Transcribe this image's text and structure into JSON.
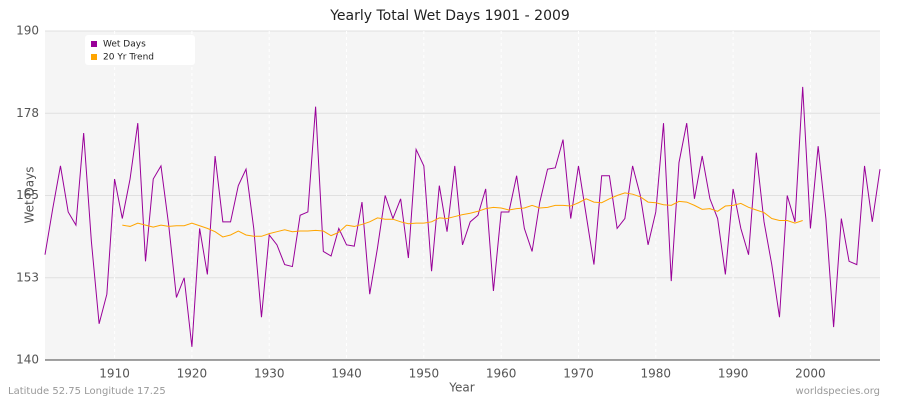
{
  "chart_data": {
    "type": "line",
    "title": "Yearly Total Wet Days 1901 - 2009",
    "x_label": "Year",
    "y_label": "Wet Days",
    "footer_left": "Latitude 52.75 Longitude 17.25",
    "footer_right": "worldspecies.org",
    "x": [
      1901,
      1902,
      1903,
      1904,
      1905,
      1906,
      1907,
      1908,
      1909,
      1910,
      1911,
      1912,
      1913,
      1914,
      1915,
      1916,
      1917,
      1918,
      1919,
      1920,
      1921,
      1922,
      1923,
      1924,
      1925,
      1926,
      1927,
      1928,
      1929,
      1930,
      1931,
      1932,
      1933,
      1934,
      1935,
      1936,
      1937,
      1938,
      1939,
      1940,
      1941,
      1942,
      1943,
      1944,
      1945,
      1946,
      1947,
      1948,
      1949,
      1950,
      1951,
      1952,
      1953,
      1954,
      1955,
      1956,
      1957,
      1958,
      1959,
      1960,
      1961,
      1962,
      1963,
      1964,
      1965,
      1966,
      1967,
      1968,
      1969,
      1970,
      1971,
      1972,
      1973,
      1974,
      1975,
      1976,
      1977,
      1978,
      1979,
      1980,
      1981,
      1982,
      1983,
      1984,
      1985,
      1986,
      1987,
      1988,
      1989,
      1990,
      1991,
      1992,
      1993,
      1994,
      1995,
      1996,
      1997,
      1998,
      1999,
      2000,
      2001,
      2002,
      2003,
      2004,
      2005,
      2006,
      2007,
      2008,
      2009
    ],
    "series": [
      {
        "name": "Wet Days",
        "color": "#990099",
        "values": [
          156,
          163,
          169.5,
          162.5,
          160.5,
          174.5,
          158,
          145.5,
          150,
          167.5,
          161.5,
          167.5,
          176,
          155,
          167.5,
          169.5,
          160.5,
          149.5,
          152.5,
          142,
          160,
          153,
          171,
          161,
          161,
          166.5,
          169,
          160,
          146.5,
          159,
          157.5,
          154.5,
          154.2,
          162,
          162.5,
          178.5,
          156.5,
          155.8,
          160,
          157.5,
          157.3,
          164,
          150,
          157,
          165,
          161.5,
          164.5,
          155.5,
          172,
          169.5,
          153.5,
          166.5,
          159.5,
          169.5,
          157.5,
          161,
          162,
          166,
          150.5,
          162.5,
          162.5,
          168,
          160,
          156.5,
          164,
          169,
          169.2,
          173.5,
          161.5,
          169.5,
          162,
          154.5,
          168,
          168,
          160,
          161.5,
          169.5,
          165,
          157.5,
          162.5,
          176,
          152,
          170,
          176,
          164.5,
          171,
          164.5,
          161.5,
          153,
          166,
          160,
          156,
          171.5,
          161,
          154.5,
          146.5,
          165,
          161,
          181.5,
          160,
          172.5,
          161.5,
          145,
          161.5,
          155,
          154.5,
          169.5,
          161,
          169
        ]
      },
      {
        "name": "20 Yr Trend",
        "color": "#ffa500",
        "values": [
          null,
          null,
          null,
          null,
          null,
          null,
          null,
          null,
          null,
          null,
          160.5,
          160.3,
          160.8,
          160.5,
          160.2,
          160.5,
          160.3,
          160.4,
          160.4,
          160.8,
          160.4,
          160,
          159.5,
          158.7,
          159,
          159.6,
          159,
          158.8,
          158.8,
          159.2,
          159.5,
          159.8,
          159.5,
          159.6,
          159.6,
          159.7,
          159.6,
          158.9,
          159.4,
          160.5,
          160.3,
          160.6,
          161,
          161.6,
          161.4,
          161.4,
          161,
          160.7,
          160.8,
          160.8,
          161,
          161.6,
          161.5,
          161.8,
          162.1,
          162.3,
          162.6,
          163,
          163.2,
          163.1,
          162.8,
          163,
          163.1,
          163.5,
          163.1,
          163.2,
          163.5,
          163.5,
          163.4,
          163.9,
          164.5,
          164,
          163.9,
          164.5,
          165,
          165.4,
          165.2,
          164.8,
          164,
          163.9,
          163.6,
          163.5,
          164.1,
          164,
          163.5,
          162.9,
          163,
          162.6,
          163.4,
          163.5,
          163.8,
          163.2,
          162.8,
          162.4,
          161.5,
          161.2,
          161.2,
          160.8,
          161.2,
          null,
          null,
          null,
          null,
          null,
          null,
          null,
          null,
          null,
          null
        ]
      }
    ],
    "xlim": [
      1901,
      2009
    ],
    "xticks": [
      1910,
      1920,
      1930,
      1940,
      1950,
      1960,
      1970,
      1980,
      1990,
      2000
    ],
    "ylim": [
      140,
      190
    ],
    "yticks": [
      140,
      {
        "value": 152.5,
        "label": "153"
      },
      165,
      {
        "value": 177.5,
        "label": "178"
      },
      190
    ],
    "grid": true,
    "legend": "top-left"
  }
}
